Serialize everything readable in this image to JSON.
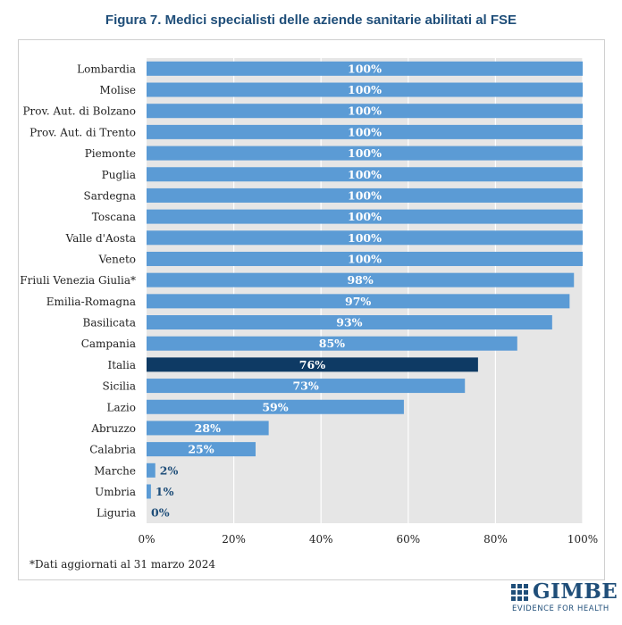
{
  "title": "Figura 7. Medici specialisti delle aziende sanitarie abilitati al FSE",
  "footnote": "*Dati aggiornati al 31 marzo 2024",
  "logo": {
    "name": "GIMBE",
    "tagline": "EVIDENCE FOR HEALTH"
  },
  "colors": {
    "bar": "#5b9bd5",
    "highlight": "#0e3a64",
    "plot_bg": "#e6e6e6",
    "grid": "#ffffff",
    "label_inside": "#ffffff",
    "label_outside": "#1f4e79"
  },
  "chart_data": {
    "type": "bar",
    "orientation": "horizontal",
    "title": "Figura 7. Medici specialisti delle aziende sanitarie abilitati al FSE",
    "xlim": [
      0,
      100
    ],
    "x_ticks": [
      "0%",
      "20%",
      "40%",
      "60%",
      "80%",
      "100%"
    ],
    "grid": true,
    "highlight": "Italia",
    "categories": [
      "Lombardia",
      "Molise",
      "Prov. Aut. di Bolzano",
      "Prov. Aut. di Trento",
      "Piemonte",
      "Puglia",
      "Sardegna",
      "Toscana",
      "Valle d'Aosta",
      "Veneto",
      "Friuli Venezia Giulia*",
      "Emilia-Romagna",
      "Basilicata",
      "Campania",
      "Italia",
      "Sicilia",
      "Lazio",
      "Abruzzo",
      "Calabria",
      "Marche",
      "Umbria",
      "Liguria"
    ],
    "values": [
      100,
      100,
      100,
      100,
      100,
      100,
      100,
      100,
      100,
      100,
      98,
      97,
      93,
      85,
      76,
      73,
      59,
      28,
      25,
      2,
      1,
      0
    ],
    "labels": [
      "100%",
      "100%",
      "100%",
      "100%",
      "100%",
      "100%",
      "100%",
      "100%",
      "100%",
      "100%",
      "98%",
      "97%",
      "93%",
      "85%",
      "76%",
      "73%",
      "59%",
      "28%",
      "25%",
      "2%",
      "1%",
      "0%"
    ]
  }
}
